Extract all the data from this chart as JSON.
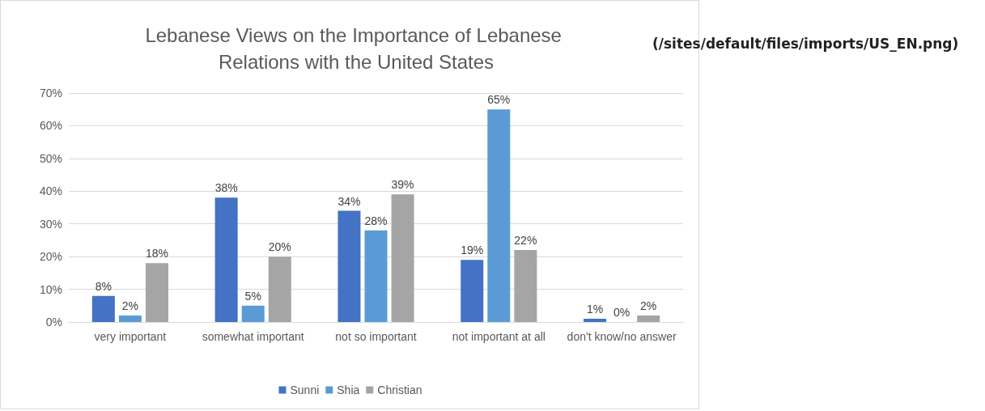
{
  "chart_data": {
    "type": "bar",
    "title": "Lebanese Views on the Importance of Lebanese Relations with the United States",
    "categories": [
      "very important",
      "somewhat important",
      "not so important",
      "not important at all",
      "don't know/no answer"
    ],
    "series": [
      {
        "name": "Sunni",
        "color": "#4472c4",
        "values": [
          8,
          38,
          34,
          19,
          1
        ],
        "value_labels": [
          "8%",
          "38%",
          "34%",
          "19%",
          "1%"
        ]
      },
      {
        "name": "Shia",
        "color": "#5b9bd5",
        "values": [
          2,
          5,
          28,
          65,
          0
        ],
        "value_labels": [
          "2%",
          "5%",
          "28%",
          "65%",
          "0%"
        ]
      },
      {
        "name": "Christian",
        "color": "#a5a5a5",
        "values": [
          18,
          20,
          39,
          22,
          2
        ],
        "value_labels": [
          "18%",
          "20%",
          "39%",
          "22%",
          "2%"
        ]
      }
    ],
    "ylim": [
      0,
      70
    ],
    "yticks": [
      {
        "value": 0,
        "label": "0%"
      },
      {
        "value": 10,
        "label": "10%"
      },
      {
        "value": 20,
        "label": "20%"
      },
      {
        "value": 30,
        "label": "30%"
      },
      {
        "value": 40,
        "label": "40%"
      },
      {
        "value": 50,
        "label": "50%"
      },
      {
        "value": 60,
        "label": "60%"
      },
      {
        "value": 70,
        "label": "70%"
      }
    ],
    "grid": "y",
    "legend": "bottom",
    "annotations": [
      "(/sites/default/files/imports/US_EN.png)"
    ]
  }
}
